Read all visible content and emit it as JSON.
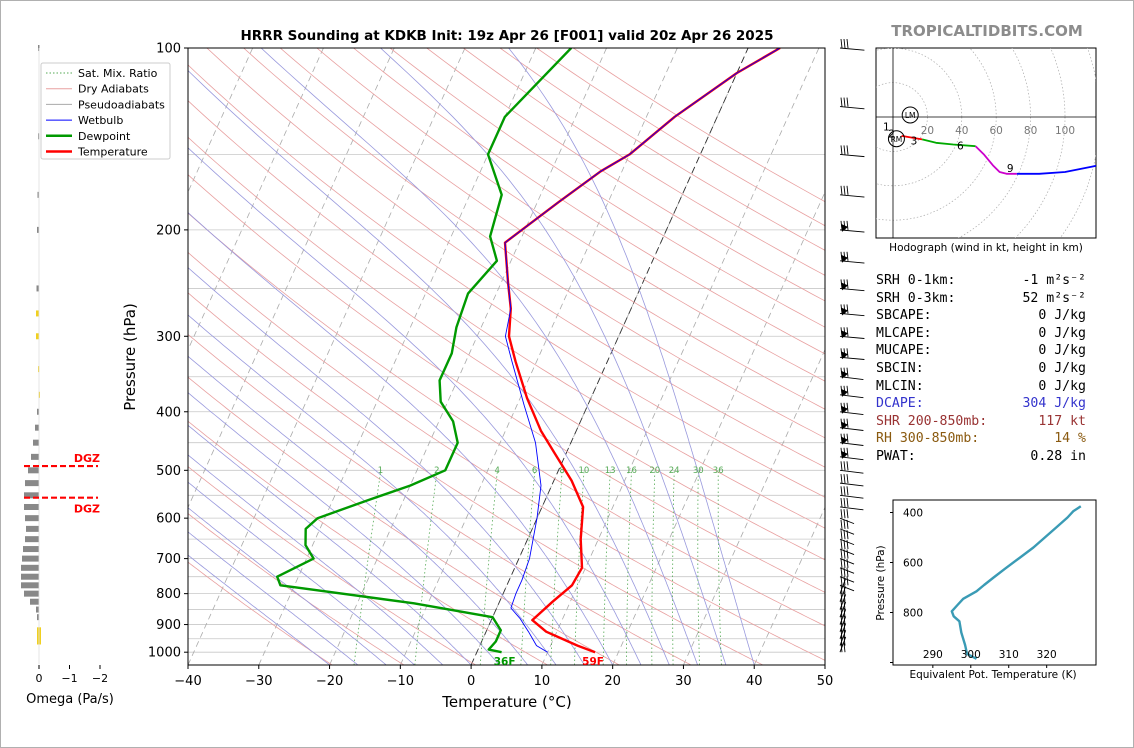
{
  "chart_data": [
    {
      "type": "skew-t",
      "title": "HRRR Sounding at KDKB Init: 19z Apr 26 [F001] valid 20z Apr 26 2025",
      "xlabel": "Temperature (°C)",
      "ylabel": "Pressure (hPa)",
      "xlim": [
        -40,
        50
      ],
      "ylim": [
        1050,
        100
      ],
      "y_scale": "log",
      "x_ticks": [
        "−40",
        "−30",
        "−20",
        "−10",
        "0",
        "10",
        "20",
        "30",
        "40",
        "50"
      ],
      "y_ticks": [
        "100",
        "200",
        "300",
        "400",
        "500",
        "600",
        "700",
        "800",
        "900",
        "1000"
      ],
      "legend_position": "top-left",
      "legend": [
        "Sat. Mix. Ratio",
        "Dry Adiabats",
        "Pseudoadiabats",
        "Wetbulb",
        "Dewpoint",
        "Temperature"
      ],
      "mixing_ratio_labels": [
        "1",
        "2",
        "4",
        "6",
        "8",
        "10",
        "13",
        "16",
        "20",
        "24",
        "30",
        "36"
      ],
      "surface_labels": {
        "dewpoint": "36F",
        "temperature": "59F"
      },
      "series": [
        {
          "name": "Temperature",
          "color": "#ff0000",
          "points": [
            [
              16.7,
              1000
            ],
            [
              13.8,
              975
            ],
            [
              8.5,
              925
            ],
            [
              5.8,
              885
            ],
            [
              7.5,
              825
            ],
            [
              9.2,
              775
            ],
            [
              9.5,
              725
            ],
            [
              7.5,
              650
            ],
            [
              5.8,
              575
            ],
            [
              2.5,
              520
            ],
            [
              -1.5,
              470
            ],
            [
              -5,
              430
            ],
            [
              -9,
              380
            ],
            [
              -13,
              330
            ],
            [
              -15.5,
              300
            ],
            [
              -17,
              270
            ],
            [
              -19,
              245
            ],
            [
              -22,
              210
            ],
            [
              -17,
              180
            ],
            [
              -13,
              160
            ],
            [
              -10,
              150
            ],
            [
              -6,
              130
            ],
            [
              0,
              110
            ],
            [
              4.5,
              100
            ]
          ]
        },
        {
          "name": "Dewpoint",
          "color": "#009900",
          "points": [
            [
              3.5,
              1000
            ],
            [
              1.5,
              990
            ],
            [
              2,
              960
            ],
            [
              2,
              920
            ],
            [
              0,
              875
            ],
            [
              -12,
              830
            ],
            [
              -32,
              775
            ],
            [
              -33,
              750
            ],
            [
              -29,
              700
            ],
            [
              -31,
              665
            ],
            [
              -32,
              625
            ],
            [
              -31,
              600
            ],
            [
              -25,
              560
            ],
            [
              -20,
              530
            ],
            [
              -16,
              500
            ],
            [
              -16,
              450
            ],
            [
              -18,
              415
            ],
            [
              -21,
              385
            ],
            [
              -22.5,
              355
            ],
            [
              -22.5,
              320
            ],
            [
              -23.5,
              290
            ],
            [
              -24,
              255
            ],
            [
              -22,
              225
            ],
            [
              -24.5,
              205
            ],
            [
              -25.5,
              175
            ],
            [
              -30,
              150
            ],
            [
              -30,
              130
            ],
            [
              -25,
              100
            ]
          ]
        },
        {
          "name": "Wetbulb",
          "color": "#0000ff",
          "points": [
            [
              10,
              1000
            ],
            [
              8,
              975
            ],
            [
              6,
              925
            ],
            [
              4,
              880
            ],
            [
              2,
              845
            ],
            [
              1.8,
              800
            ],
            [
              1.8,
              760
            ],
            [
              1.5,
              700
            ],
            [
              0,
              600
            ],
            [
              -1.5,
              530
            ],
            [
              -5,
              450
            ],
            [
              -9,
              390
            ],
            [
              -13.5,
              330
            ],
            [
              -16,
              300
            ],
            [
              -17,
              270
            ],
            [
              -19,
              245
            ],
            [
              -22,
              210
            ],
            [
              -17,
              180
            ],
            [
              -13,
              160
            ],
            [
              -10,
              150
            ],
            [
              -6,
              130
            ],
            [
              0,
              110
            ],
            [
              4.5,
              100
            ]
          ]
        }
      ]
    },
    {
      "type": "omega-bars",
      "xlabel": "Omega (Pa/s)",
      "x_ticks": [
        "0",
        "−1",
        "−2"
      ],
      "dgz_label": "DGZ"
    },
    {
      "type": "hodograph",
      "caption": "Hodograph (wind in kt, height in km)",
      "ring_labels": [
        "20",
        "40",
        "60",
        "80",
        "100"
      ],
      "height_labels": [
        "1",
        "2",
        "3",
        "6",
        "9"
      ],
      "markers": [
        "LM",
        "RM"
      ],
      "segments": [
        {
          "color": "#ff0000",
          "points": [
            [
              5,
              -11
            ],
            [
              17,
              -13
            ]
          ]
        },
        {
          "color": "#00aa00",
          "points": [
            [
              17,
              -13
            ],
            [
              25,
              -15
            ],
            [
              35,
              -16
            ],
            [
              48,
              -17
            ]
          ]
        },
        {
          "color": "#cc00cc",
          "points": [
            [
              48,
              -17
            ],
            [
              53,
              -22
            ],
            [
              58,
              -28
            ],
            [
              62,
              -32
            ],
            [
              66,
              -33
            ],
            [
              72,
              -33
            ]
          ]
        },
        {
          "color": "#0000ff",
          "points": [
            [
              72,
              -33
            ],
            [
              85,
              -33
            ],
            [
              100,
              -32
            ],
            [
              115,
              -29
            ],
            [
              125,
              -27
            ],
            [
              122,
              -33
            ]
          ]
        }
      ]
    },
    {
      "type": "line",
      "ylabel": "Pressure (hPa)",
      "xlabel": "Equivalent Pot. Temperature (K)",
      "x_ticks": [
        "290",
        "300",
        "310",
        "320"
      ],
      "y_ticks": [
        "400",
        "600",
        "800"
      ],
      "series": [
        {
          "color": "#3a9bb5",
          "points": [
            [
              301.5,
              985
            ],
            [
              299,
              965
            ],
            [
              298.5,
              930
            ],
            [
              297.5,
              880
            ],
            [
              297,
              835
            ],
            [
              295.5,
              815
            ],
            [
              295,
              795
            ],
            [
              296.5,
              770
            ],
            [
              298,
              745
            ],
            [
              301.5,
              715
            ],
            [
              303.5,
              690
            ],
            [
              306,
              660
            ],
            [
              309,
              625
            ],
            [
              313,
              580
            ],
            [
              316.5,
              540
            ],
            [
              319.5,
              500
            ],
            [
              322.5,
              460
            ],
            [
              325.5,
              420
            ],
            [
              327,
              395
            ],
            [
              329,
              375
            ]
          ]
        }
      ]
    }
  ],
  "watermark": "TROPICALTIDBITS.COM",
  "stats": [
    {
      "label": "SRH 0-1km:",
      "value": "-1 m²s⁻²",
      "color": "#000000"
    },
    {
      "label": "SRH 0-3km:",
      "value": "52 m²s⁻²",
      "color": "#000000"
    },
    {
      "label": "SBCAPE:",
      "value": "0 J/kg",
      "color": "#000000"
    },
    {
      "label": "MLCAPE:",
      "value": "0 J/kg",
      "color": "#000000"
    },
    {
      "label": "MUCAPE:",
      "value": "0 J/kg",
      "color": "#000000"
    },
    {
      "label": "SBCIN:",
      "value": "0 J/kg",
      "color": "#000000"
    },
    {
      "label": "MLCIN:",
      "value": "0 J/kg",
      "color": "#000000"
    },
    {
      "label": "DCAPE:",
      "value": "304 J/kg",
      "color": "#3333cc"
    },
    {
      "label": "SHR 200-850mb:",
      "value": "117 kt",
      "color": "#993333"
    },
    {
      "label": "RH 300-850mb:",
      "value": "14 %",
      "color": "#8a5a10"
    },
    {
      "label": "PWAT:",
      "value": "0.28 in",
      "color": "#000000"
    }
  ]
}
